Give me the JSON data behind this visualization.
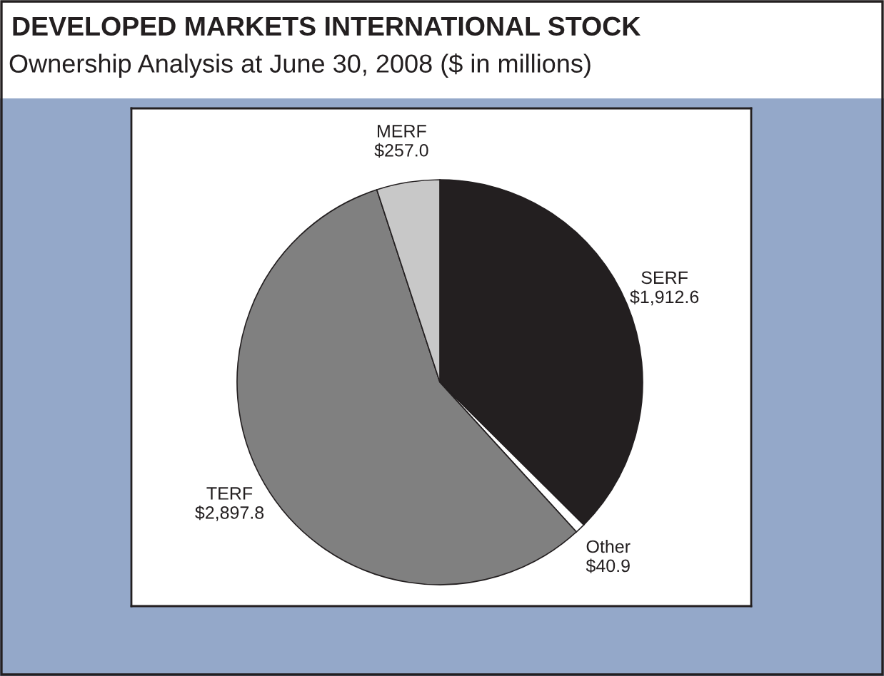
{
  "chart_data": {
    "type": "pie",
    "title": "DEVELOPED MARKETS INTERNATIONAL STOCK",
    "subtitle": "Ownership Analysis at June 30, 2008 ($ in millions)",
    "categories": [
      "SERF",
      "Other",
      "TERF",
      "MERF"
    ],
    "values": [
      1912.6,
      40.9,
      2897.8,
      257.0
    ],
    "value_labels": [
      "$1,912.6",
      "$40.9",
      "$2,897.8",
      "$257.0"
    ],
    "colors": [
      "#231f20",
      "#ffffff",
      "#808080",
      "#c8c8c8"
    ],
    "legend": false
  }
}
